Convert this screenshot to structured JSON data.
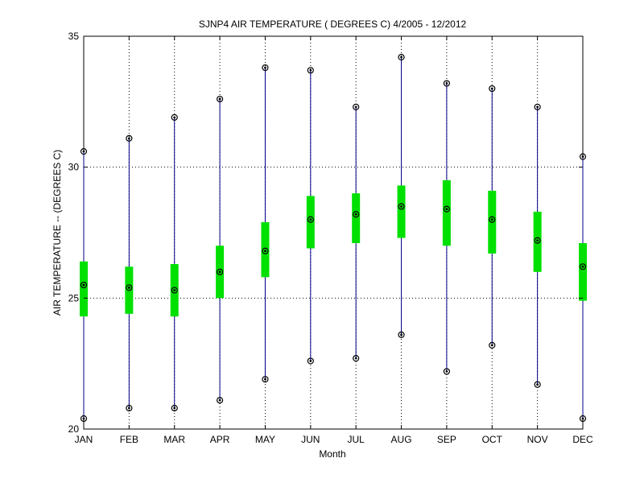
{
  "chart_data": {
    "type": "box",
    "title": "SJNP4  AIR TEMPERATURE ( DEGREES C) 4/2005 - 12/2012",
    "xlabel": "Month",
    "ylabel": "AIR TEMPERATURE -- (DEGREES C)",
    "ylim": [
      20,
      35
    ],
    "yticks": [
      20,
      25,
      30,
      35
    ],
    "grid": true,
    "categories": [
      "JAN",
      "FEB",
      "MAR",
      "APR",
      "MAY",
      "JUN",
      "JUL",
      "AUG",
      "SEP",
      "OCT",
      "NOV",
      "DEC"
    ],
    "min": [
      20.4,
      20.8,
      20.8,
      21.1,
      21.9,
      22.6,
      22.7,
      23.6,
      22.2,
      23.2,
      21.7,
      20.4
    ],
    "q1": [
      24.3,
      24.4,
      24.3,
      25.0,
      25.8,
      26.9,
      27.1,
      27.3,
      27.0,
      26.7,
      26.0,
      24.9
    ],
    "center": [
      25.5,
      25.4,
      25.3,
      26.0,
      26.8,
      28.0,
      28.2,
      28.5,
      28.4,
      28.0,
      27.2,
      26.2
    ],
    "q3": [
      26.4,
      26.2,
      26.3,
      27.0,
      27.9,
      28.9,
      29.0,
      29.3,
      29.5,
      29.1,
      28.3,
      27.1
    ],
    "max": [
      30.6,
      31.1,
      31.9,
      32.6,
      33.8,
      33.7,
      32.3,
      34.2,
      33.2,
      33.0,
      32.3,
      30.4
    ],
    "colors": {
      "whisker": "#00008b",
      "box": "#00e000",
      "marker": "#000000"
    }
  }
}
